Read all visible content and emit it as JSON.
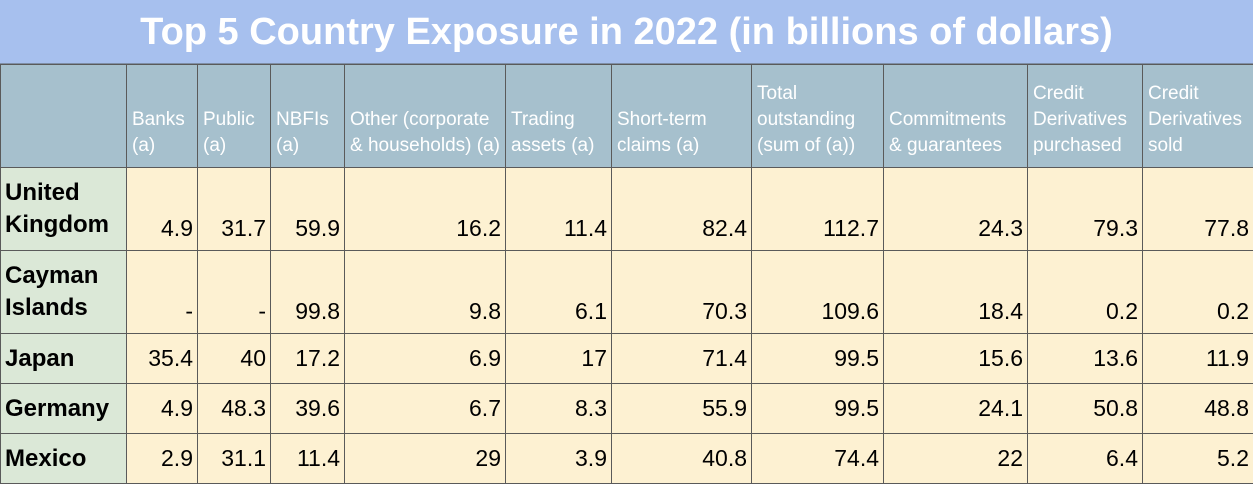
{
  "chart_data": {
    "type": "table",
    "title": "Top 5 Country Exposure in 2022 (in billions of dollars)",
    "columns": [
      "Banks (a)",
      "Public (a)",
      "NBFIs (a)",
      "Other (corporate & households) (a)",
      "Trading assets (a)",
      "Short-term claims (a)",
      "Total outstanding (sum of (a))",
      "Commitments & guarantees",
      "Credit Derivatives purchased",
      "Credit Derivatives sold"
    ],
    "rows": [
      {
        "label": "United Kingdom",
        "values": [
          "4.9",
          "31.7",
          "59.9",
          "16.2",
          "11.4",
          "82.4",
          "112.7",
          "24.3",
          "79.3",
          "77.8"
        ]
      },
      {
        "label": "Cayman Islands",
        "values": [
          "-",
          "-",
          "99.8",
          "9.8",
          "6.1",
          "70.3",
          "109.6",
          "18.4",
          "0.2",
          "0.2"
        ]
      },
      {
        "label": "Japan",
        "values": [
          "35.4",
          "40",
          "17.2",
          "6.9",
          "17",
          "71.4",
          "99.5",
          "15.6",
          "13.6",
          "11.9"
        ]
      },
      {
        "label": "Germany",
        "values": [
          "4.9",
          "48.3",
          "39.6",
          "6.7",
          "8.3",
          "55.9",
          "99.5",
          "24.1",
          "50.8",
          "48.8"
        ]
      },
      {
        "label": "Mexico",
        "values": [
          "2.9",
          "31.1",
          "11.4",
          "29",
          "3.9",
          "40.8",
          "74.4",
          "22",
          "6.4",
          "5.2"
        ]
      }
    ]
  },
  "colors": {
    "title_bg": "#a7c0ee",
    "header_bg": "#a6c0cd",
    "row_label_bg": "#dbe8d7",
    "cell_bg": "#fdf1d2"
  }
}
